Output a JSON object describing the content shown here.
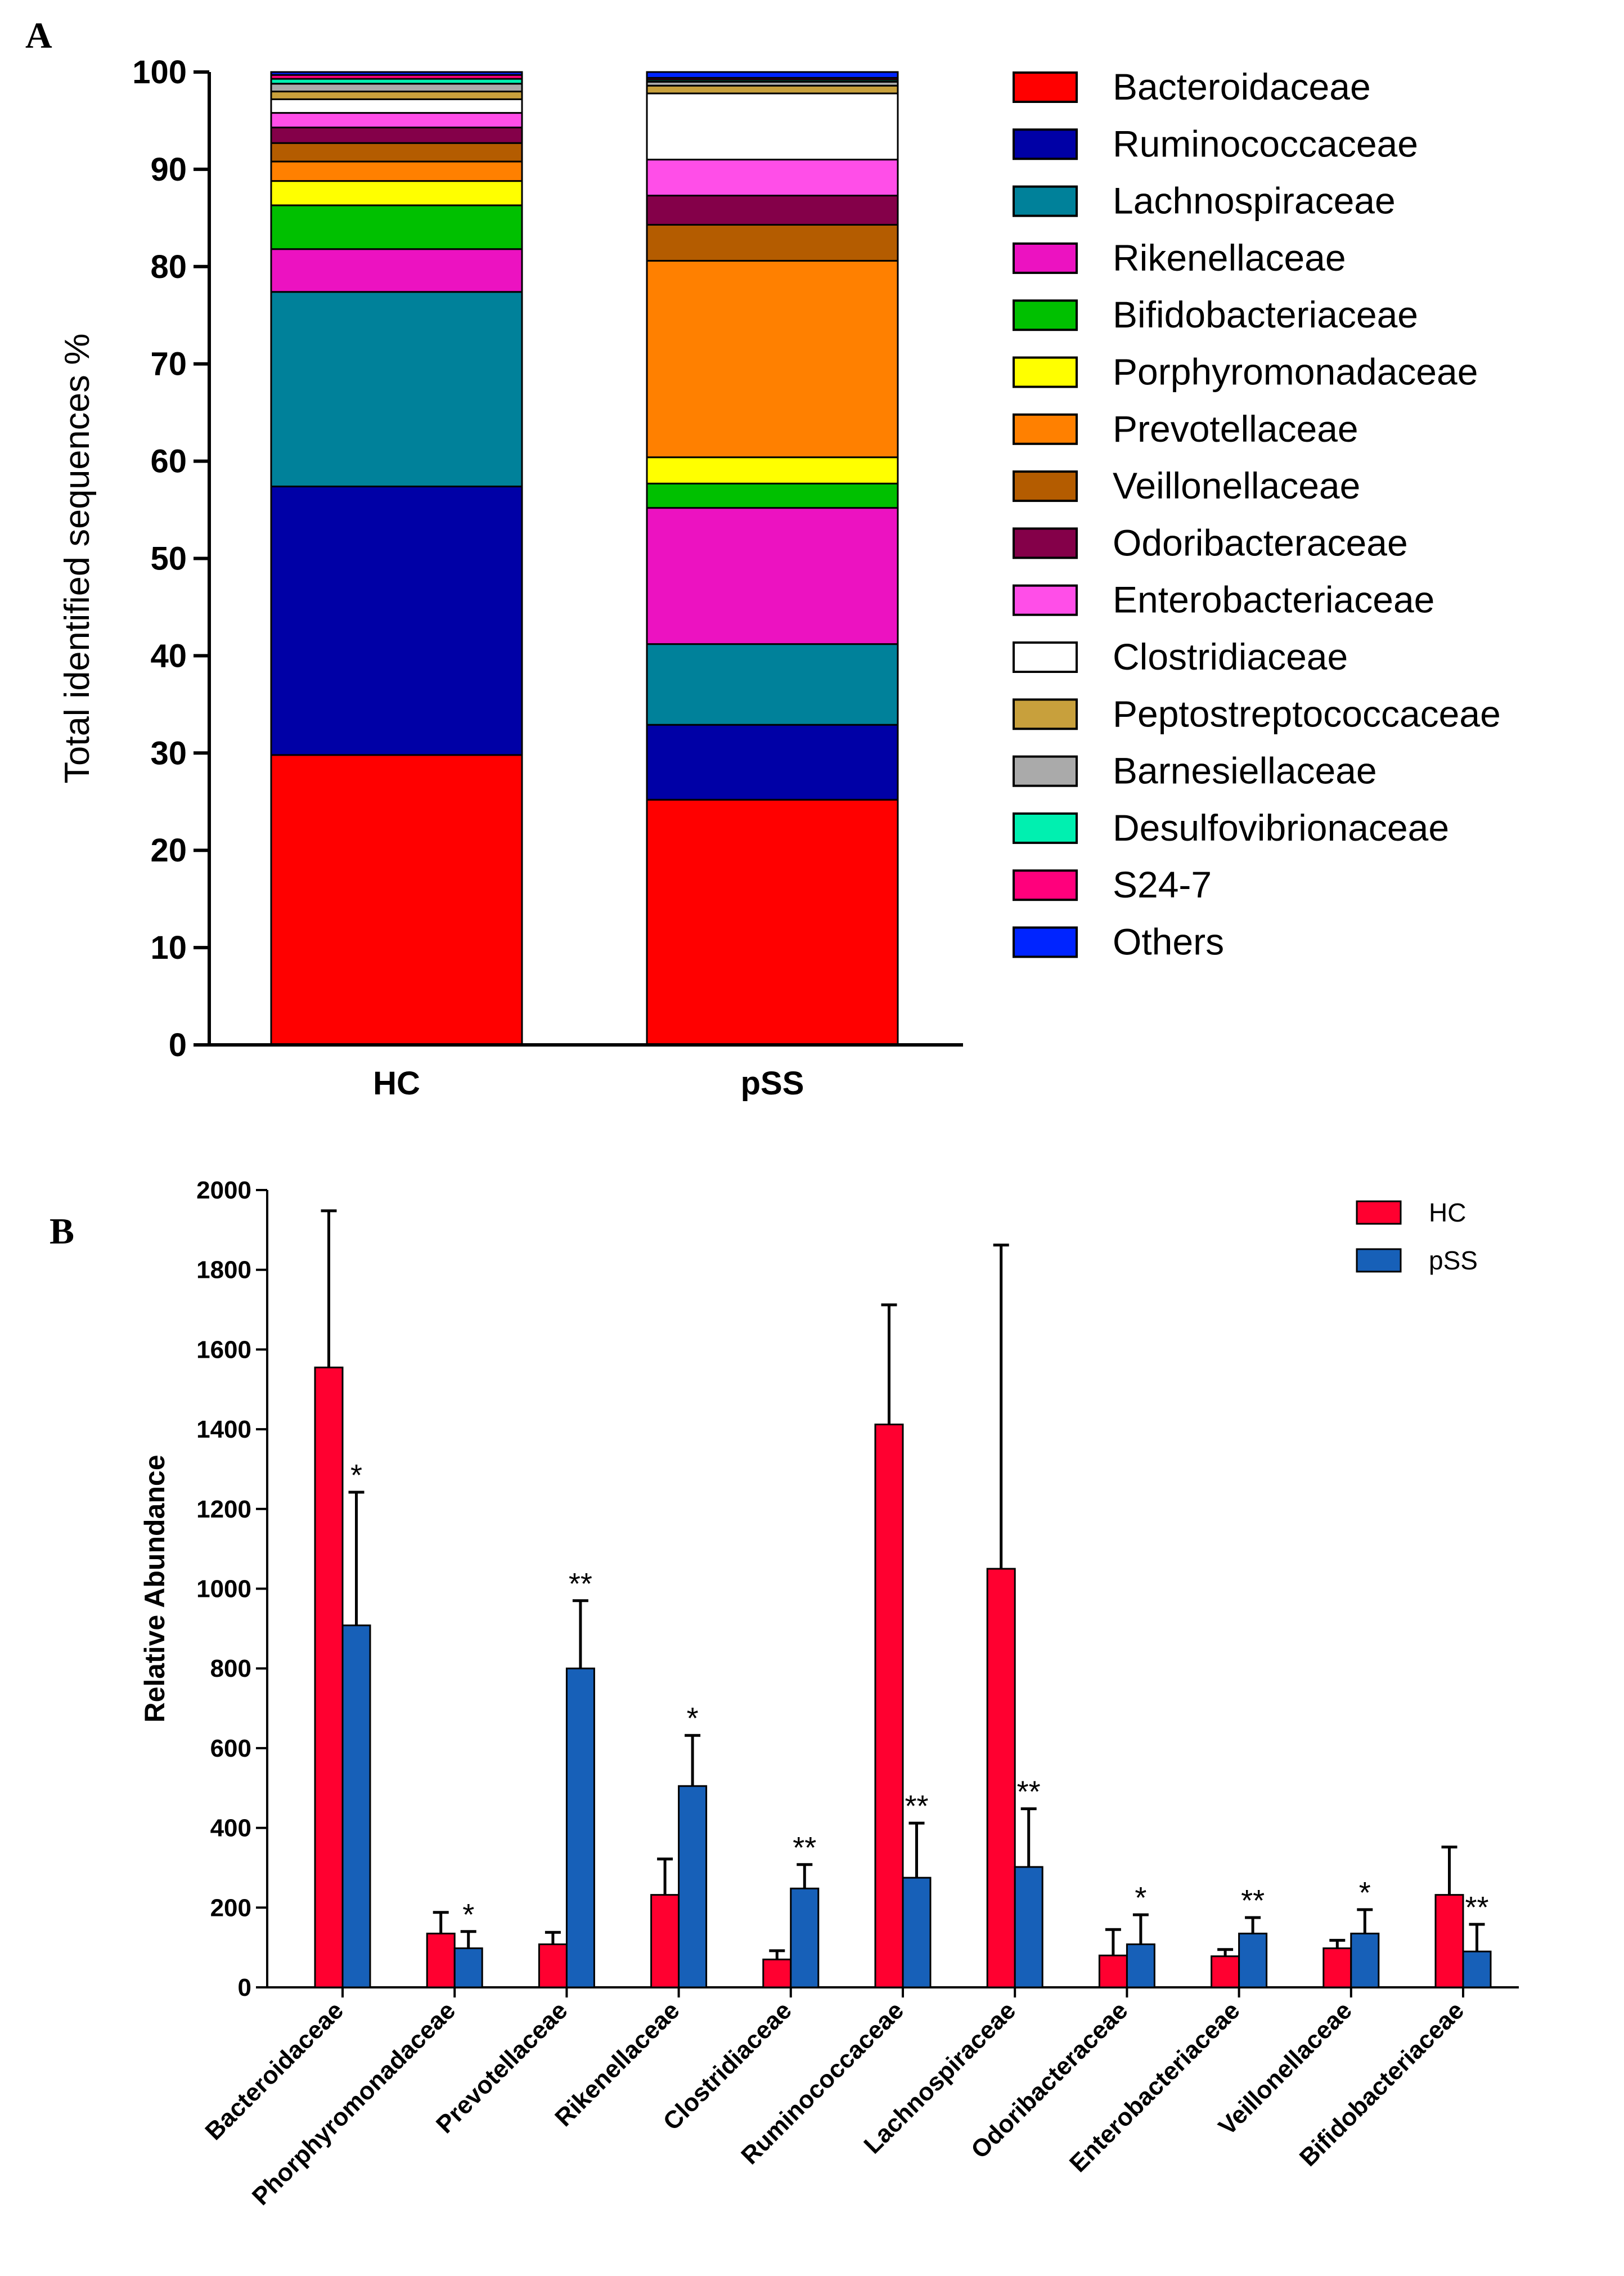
{
  "colors": {
    "Bacteroidaceae": "#ff0000",
    "Ruminococcaceae": "#0000a6",
    "Lachnospiraceae": "#00819a",
    "Rikenellaceae": "#ec12c1",
    "Bifidobacteriaceae": "#00c000",
    "Porphyromonadaceae": "#ffff00",
    "Prevotellaceae": "#ff8000",
    "Veillonellaceae": "#b45c00",
    "Odoribacteraceae": "#840049",
    "Enterobacteriaceae": "#ff4ee8",
    "Clostridiaceae": "#ffffff",
    "Peptostreptococcaceae": "#c8a03c",
    "Barnesiellaceae": "#aaaaaa",
    "Desulfovibrionaceae": "#00f0b0",
    "S24-7": "#ff007c",
    "Others": "#0024ff",
    "hc_bar": "#ff0030",
    "pss_bar": "#1760b8"
  },
  "chart_data": [
    {
      "type": "bar",
      "stacked": true,
      "panel_label": "A",
      "title": "",
      "xlabel": "",
      "ylabel": "Total identified sequences %",
      "ylim": [
        0,
        100
      ],
      "yticks": [
        "0",
        "10",
        "20",
        "30",
        "40",
        "50",
        "60",
        "70",
        "80",
        "90",
        "100"
      ],
      "categories": [
        "HC",
        "pSS"
      ],
      "legend_position": "right",
      "series": [
        {
          "name": "Bacteroidaceae",
          "values": [
            29.8,
            25.2
          ]
        },
        {
          "name": "Ruminococcaceae",
          "values": [
            27.6,
            7.7
          ]
        },
        {
          "name": "Lachnospiraceae",
          "values": [
            20.0,
            8.3
          ]
        },
        {
          "name": "Rikenellaceae",
          "values": [
            4.4,
            14.0
          ]
        },
        {
          "name": "Bifidobacteriaceae",
          "values": [
            4.5,
            2.5
          ]
        },
        {
          "name": "Porphyromonadaceae",
          "values": [
            2.5,
            2.7
          ]
        },
        {
          "name": "Prevotellaceae",
          "values": [
            2.0,
            20.2
          ]
        },
        {
          "name": "Veillonellaceae",
          "values": [
            1.9,
            3.7
          ]
        },
        {
          "name": "Odoribacteraceae",
          "values": [
            1.6,
            3.0
          ]
        },
        {
          "name": "Enterobacteriaceae",
          "values": [
            1.5,
            3.7
          ]
        },
        {
          "name": "Clostridiaceae",
          "values": [
            1.4,
            6.8
          ]
        },
        {
          "name": "Peptostreptococcaceae",
          "values": [
            0.8,
            0.8
          ]
        },
        {
          "name": "Barnesiellaceae",
          "values": [
            0.8,
            0.4
          ]
        },
        {
          "name": "Desulfovibrionaceae",
          "values": [
            0.5,
            0.2
          ]
        },
        {
          "name": "S24-7",
          "values": [
            0.4,
            0.2
          ]
        },
        {
          "name": "Others",
          "values": [
            0.3,
            0.6
          ]
        }
      ]
    },
    {
      "type": "bar",
      "panel_label": "B",
      "title": "",
      "xlabel": "",
      "ylabel": "Relative Abundance",
      "ylim": [
        0,
        2000
      ],
      "yticks": [
        "0",
        "200",
        "400",
        "600",
        "800",
        "1000",
        "1200",
        "1400",
        "1600",
        "1800",
        "2000"
      ],
      "legend_position": "top-right",
      "categories": [
        "Bacteroidaceae",
        "Phorphyromonadaceae",
        "Prevotellaceae",
        "Rikenellaceae",
        "Clostridiaceae",
        "Ruminococcaceae",
        "Lachnospiraceae",
        "Odoribacteraceae",
        "Enterobacteriaceae",
        "Veillonellaceae",
        "Bifidobacteriaceae"
      ],
      "series": [
        {
          "name": "HC",
          "values": [
            1555,
            135,
            108,
            232,
            70,
            1412,
            1050,
            80,
            78,
            98,
            232
          ],
          "error_upper": [
            1948,
            188,
            138,
            322,
            92,
            1712,
            1862,
            145,
            95,
            118,
            352
          ]
        },
        {
          "name": "pSS",
          "values": [
            908,
            98,
            800,
            505,
            248,
            275,
            302,
            108,
            135,
            135,
            90
          ],
          "error_upper": [
            1242,
            140,
            970,
            632,
            308,
            412,
            448,
            182,
            175,
            195,
            158
          ]
        }
      ],
      "annotations": [
        "*",
        "*",
        "**",
        "*",
        "**",
        "**",
        "**",
        "*",
        "**",
        "*",
        "**"
      ]
    }
  ]
}
